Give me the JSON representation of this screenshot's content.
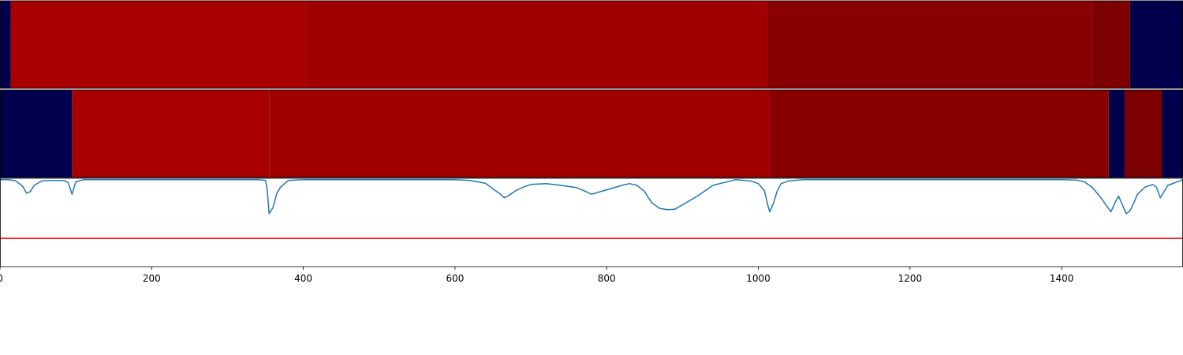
{
  "chart_data": {
    "type": "heatmap",
    "title": "",
    "xlabel": "",
    "ylabel": "",
    "xlim": [
      0,
      1560
    ],
    "ylim": [
      0,
      1
    ],
    "xticks": [
      0,
      200,
      400,
      600,
      800,
      1000,
      1200,
      1400
    ],
    "xtick_labels": [
      "0",
      "200",
      "400",
      "600",
      "800",
      "1000",
      "1200",
      "1400"
    ],
    "segment_rows": [
      {
        "name": "",
        "segments": [
          {
            "start": 0,
            "end": 14,
            "color": "#00004c"
          },
          {
            "start": 14,
            "end": 404,
            "color": "#a80000"
          },
          {
            "start": 404,
            "end": 1012,
            "color": "#a00000"
          },
          {
            "start": 1012,
            "end": 1440,
            "color": "#880000"
          },
          {
            "start": 1440,
            "end": 1490,
            "color": "#7c0000"
          },
          {
            "start": 1490,
            "end": 1560,
            "color": "#00004c"
          }
        ]
      },
      {
        "name": "",
        "segments": [
          {
            "start": 0,
            "end": 95,
            "color": "#00004c"
          },
          {
            "start": 95,
            "end": 355,
            "color": "#a80000"
          },
          {
            "start": 355,
            "end": 1015,
            "color": "#a00000"
          },
          {
            "start": 1015,
            "end": 1462,
            "color": "#880000"
          },
          {
            "start": 1462,
            "end": 1483,
            "color": "#00004c"
          },
          {
            "start": 1483,
            "end": 1532,
            "color": "#7c0000"
          },
          {
            "start": 1532,
            "end": 1560,
            "color": "#00004c"
          }
        ]
      }
    ],
    "line_series": {
      "name": "",
      "color": "#1f77b4",
      "x": [
        0,
        10,
        20,
        30,
        35,
        40,
        45,
        55,
        65,
        75,
        85,
        90,
        95,
        97,
        100,
        110,
        200,
        300,
        340,
        350,
        352,
        355,
        360,
        365,
        370,
        380,
        400,
        500,
        600,
        620,
        640,
        650,
        660,
        665,
        670,
        680,
        690,
        700,
        720,
        740,
        760,
        770,
        780,
        800,
        820,
        830,
        840,
        850,
        855,
        860,
        870,
        880,
        890,
        900,
        920,
        940,
        970,
        990,
        1000,
        1008,
        1013,
        1015,
        1020,
        1025,
        1030,
        1040,
        1060,
        1100,
        1300,
        1400,
        1420,
        1430,
        1440,
        1450,
        1460,
        1465,
        1470,
        1475,
        1480,
        1485,
        1490,
        1495,
        1500,
        1510,
        1520,
        1525,
        1530,
        1540,
        1560
      ],
      "y": [
        0.985,
        0.985,
        0.975,
        0.91,
        0.83,
        0.85,
        0.92,
        0.97,
        0.975,
        0.975,
        0.975,
        0.95,
        0.82,
        0.88,
        0.96,
        0.985,
        0.985,
        0.985,
        0.985,
        0.978,
        0.9,
        0.6,
        0.67,
        0.83,
        0.9,
        0.975,
        0.985,
        0.985,
        0.985,
        0.975,
        0.945,
        0.88,
        0.82,
        0.78,
        0.8,
        0.86,
        0.9,
        0.93,
        0.94,
        0.92,
        0.895,
        0.86,
        0.82,
        0.87,
        0.92,
        0.94,
        0.92,
        0.85,
        0.78,
        0.72,
        0.66,
        0.645,
        0.65,
        0.7,
        0.8,
        0.92,
        0.985,
        0.97,
        0.94,
        0.86,
        0.68,
        0.62,
        0.72,
        0.86,
        0.94,
        0.97,
        0.985,
        0.985,
        0.985,
        0.985,
        0.98,
        0.96,
        0.9,
        0.8,
        0.68,
        0.62,
        0.72,
        0.8,
        0.7,
        0.6,
        0.63,
        0.72,
        0.82,
        0.9,
        0.93,
        0.9,
        0.78,
        0.92,
        0.985
      ]
    },
    "threshold_line": {
      "y": 0.32,
      "color": "#ff0000"
    },
    "grid": false,
    "legend": false
  }
}
